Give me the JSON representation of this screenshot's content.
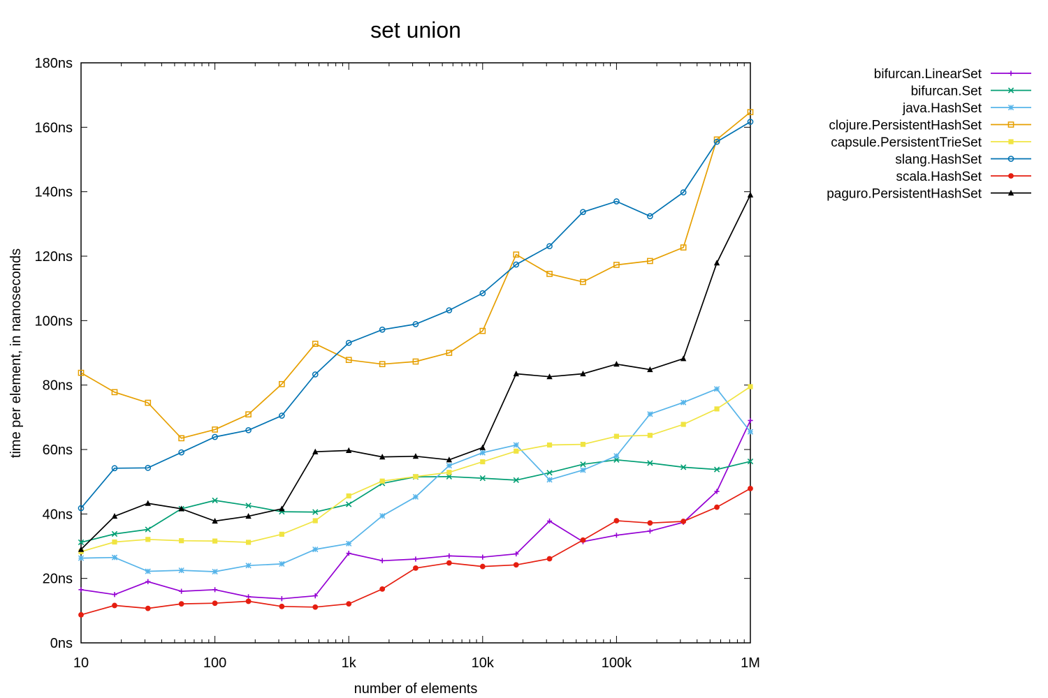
{
  "chart_data": {
    "type": "line",
    "title": "set union",
    "xlabel": "number of elements",
    "ylabel": "time per element, in nanoseconds",
    "x_scale": "log",
    "xlim": [
      10,
      1000000
    ],
    "ylim": [
      0,
      180
    ],
    "x_ticks": [
      {
        "value": 10,
        "label": "10"
      },
      {
        "value": 100,
        "label": "100"
      },
      {
        "value": 1000,
        "label": "1k"
      },
      {
        "value": 10000,
        "label": "10k"
      },
      {
        "value": 100000,
        "label": "100k"
      },
      {
        "value": 1000000,
        "label": "1M"
      }
    ],
    "y_ticks": [
      {
        "value": 0,
        "label": "0ns"
      },
      {
        "value": 20,
        "label": "20ns"
      },
      {
        "value": 40,
        "label": "40ns"
      },
      {
        "value": 60,
        "label": "60ns"
      },
      {
        "value": 80,
        "label": "80ns"
      },
      {
        "value": 100,
        "label": "100ns"
      },
      {
        "value": 120,
        "label": "120ns"
      },
      {
        "value": 140,
        "label": "140ns"
      },
      {
        "value": 160,
        "label": "160ns"
      },
      {
        "value": 180,
        "label": "180ns"
      }
    ],
    "grid": false,
    "legend_position": "top-right, outside plot",
    "x": [
      10,
      17.8,
      31.6,
      56.2,
      100,
      178,
      316,
      562,
      1000,
      1780,
      3160,
      5620,
      10000,
      17800,
      31600,
      56200,
      100000,
      178000,
      316000,
      562000,
      1000000
    ],
    "series": [
      {
        "name": "bifurcan.LinearSet",
        "color": "#9400d3",
        "marker": "plus",
        "values": [
          16.5,
          15,
          19,
          16,
          16.5,
          14.3,
          13.7,
          14.6,
          27.8,
          25.5,
          26,
          27,
          26.6,
          27.6,
          37.8,
          31.4,
          33.4,
          34.7,
          37.4,
          47,
          69
        ]
      },
      {
        "name": "bifurcan.Set",
        "color": "#009e73",
        "marker": "cross",
        "values": [
          31.2,
          33.8,
          35.2,
          41.6,
          44.2,
          42.6,
          40.7,
          40.6,
          43,
          49.5,
          51.5,
          51.6,
          51.1,
          50.5,
          52.8,
          55.4,
          56.8,
          55.8,
          54.5,
          53.8,
          56.3
        ]
      },
      {
        "name": "java.HashSet",
        "color": "#56b4e9",
        "marker": "star",
        "values": [
          26.3,
          26.5,
          22.2,
          22.5,
          22.1,
          24,
          24.5,
          29,
          30.8,
          39.4,
          45.3,
          55,
          59,
          61.4,
          50.6,
          53.6,
          58,
          71,
          74.6,
          78.8,
          65.5
        ]
      },
      {
        "name": "clojure.PersistentHashSet",
        "color": "#e69f00",
        "marker": "square",
        "values": [
          83.8,
          77.8,
          74.5,
          63.5,
          66.2,
          70.9,
          80.3,
          92.8,
          87.8,
          86.5,
          87.3,
          90,
          96.8,
          120.5,
          114.5,
          112,
          117.3,
          118.5,
          122.7,
          156.2,
          164.7
        ]
      },
      {
        "name": "capsule.PersistentTrieSet",
        "color": "#f0e442",
        "marker": "filled-square",
        "values": [
          28.3,
          31.3,
          32.1,
          31.7,
          31.6,
          31.2,
          33.7,
          37.9,
          45.6,
          50.2,
          51.6,
          52.9,
          56.2,
          59.5,
          61.4,
          61.6,
          64.1,
          64.4,
          67.8,
          72.6,
          79.5
        ]
      },
      {
        "name": "slang.HashSet",
        "color": "#0072b2",
        "marker": "circle",
        "values": [
          41.8,
          54.2,
          54.3,
          59.1,
          63.9,
          66,
          70.5,
          83.3,
          93.1,
          97.2,
          98.9,
          103.2,
          108.5,
          117.4,
          123.1,
          133.7,
          137,
          132.4,
          139.8,
          155.5,
          161.7
        ]
      },
      {
        "name": "scala.HashSet",
        "color": "#e51e10",
        "marker": "filled-circle",
        "values": [
          8.7,
          11.6,
          10.7,
          12.1,
          12.3,
          12.9,
          11.3,
          11.1,
          12.1,
          16.7,
          23.2,
          24.8,
          23.7,
          24.2,
          26.1,
          31.9,
          37.9,
          37.2,
          37.7,
          42.1,
          47.9
        ]
      },
      {
        "name": "paguro.PersistentHashSet",
        "color": "#000000",
        "marker": "triangle",
        "values": [
          29,
          39.3,
          43.3,
          41.6,
          37.8,
          39.3,
          41.6,
          59.3,
          59.7,
          57.7,
          57.9,
          56.8,
          60.6,
          83.5,
          82.6,
          83.5,
          86.5,
          84.8,
          88.2,
          117.9,
          139
        ]
      }
    ]
  }
}
